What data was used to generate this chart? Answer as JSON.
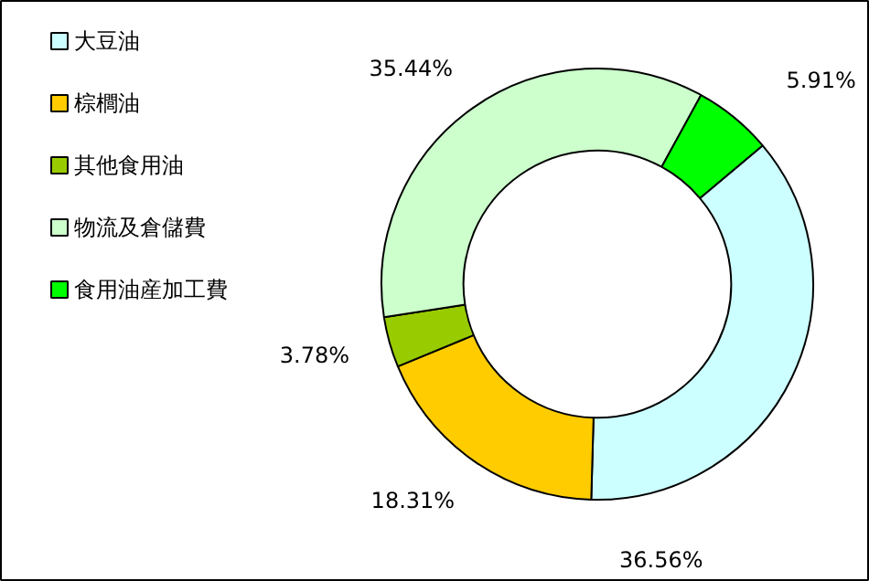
{
  "chart_data": {
    "type": "donut",
    "categories": [
      "大豆油",
      "棕櫚油",
      "其他食用油",
      "物流及倉儲費",
      "食用油産加工費"
    ],
    "values": [
      36.56,
      18.31,
      3.78,
      35.44,
      5.91
    ],
    "colors": [
      "#ccffff",
      "#ffcc00",
      "#99cc00",
      "#ccffcc",
      "#00ff00"
    ],
    "value_labels": [
      "36.56%",
      "18.31%",
      "3.78%",
      "35.44%",
      "5.91%"
    ],
    "legend": "top left"
  }
}
